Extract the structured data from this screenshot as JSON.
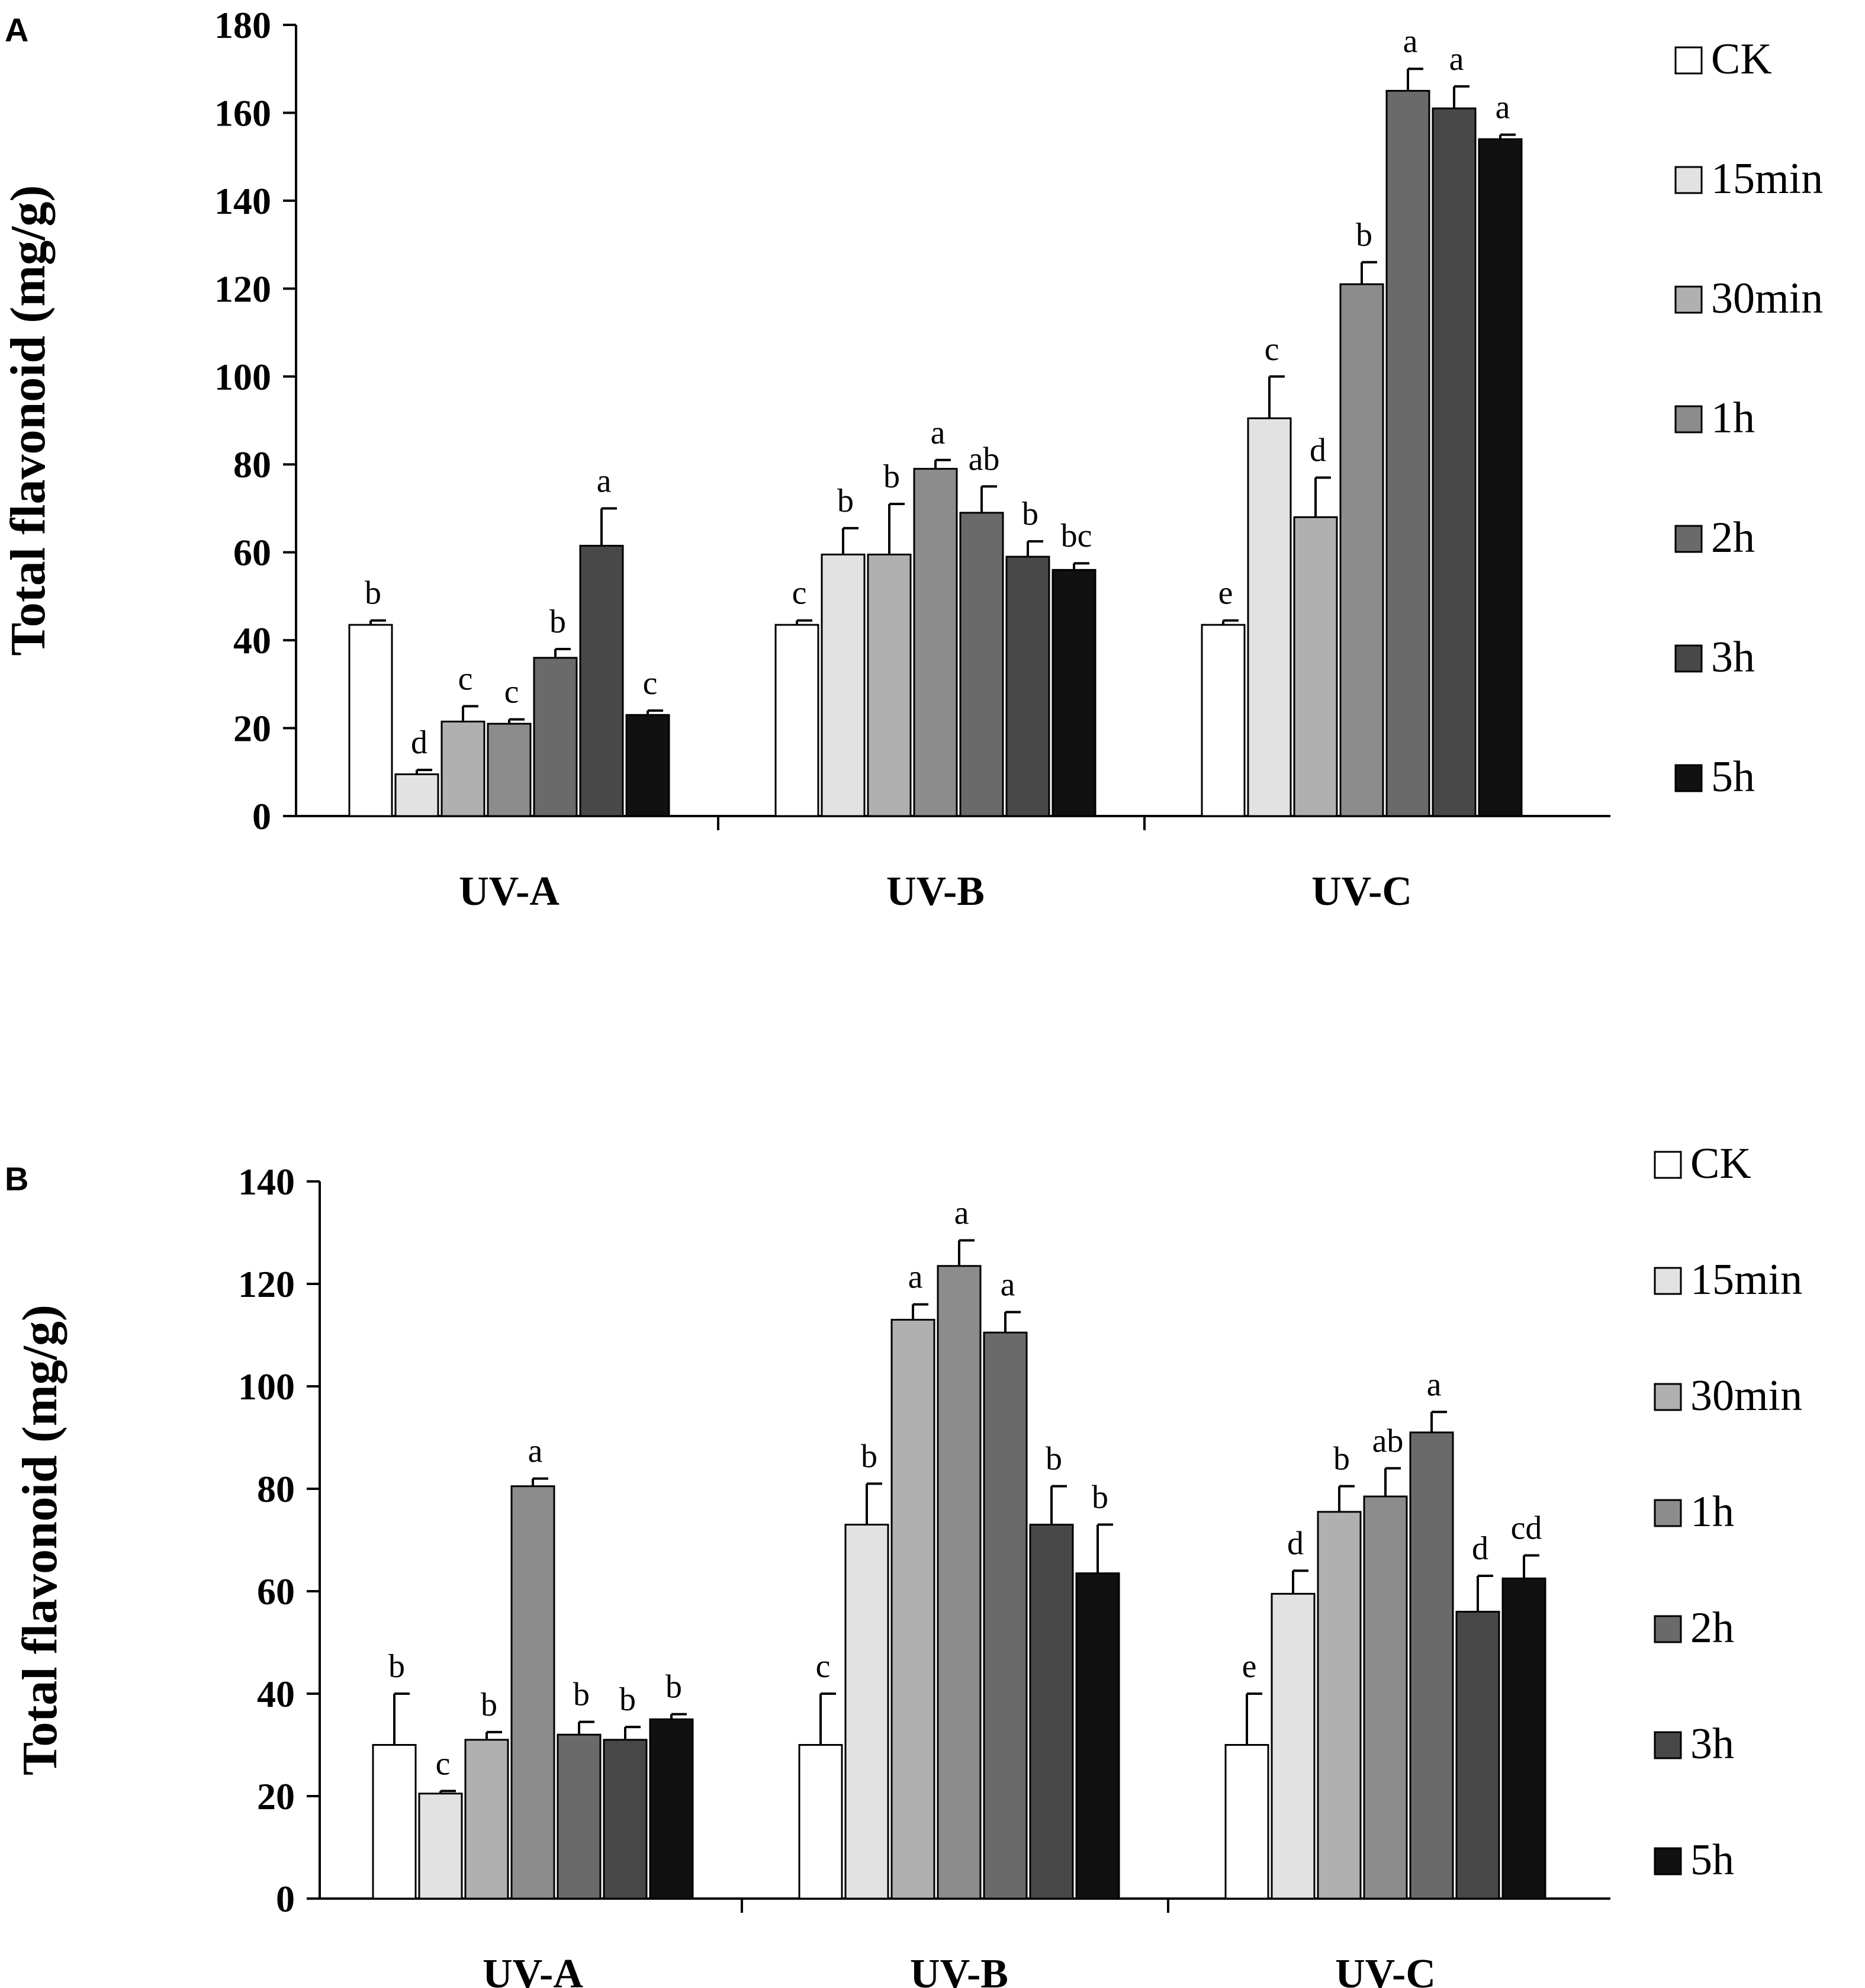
{
  "figure": {
    "legend": [
      "CK",
      "15min",
      "30min",
      "1h",
      "2h",
      "3h",
      "5h"
    ],
    "series_colors": [
      "#ffffff",
      "#e2e2e2",
      "#b0b0b0",
      "#8c8c8c",
      "#6a6a6a",
      "#484848",
      "#111111"
    ]
  },
  "chart_data": [
    {
      "type": "bar",
      "panel": "A",
      "title": "",
      "xlabel": "",
      "ylabel": "Total flavonoid (mg/g)",
      "ylim": [
        0,
        180
      ],
      "yticks": [
        0,
        20,
        40,
        60,
        80,
        100,
        120,
        140,
        160,
        180
      ],
      "grid": false,
      "legend_position": "right",
      "categories": [
        "UV-A",
        "UV-B",
        "UV-C"
      ],
      "series": [
        {
          "name": "CK",
          "values": [
            43.5,
            43.5,
            43.5
          ],
          "errors": [
            1,
            1,
            1
          ],
          "letters": [
            "b",
            "c",
            "e"
          ]
        },
        {
          "name": "15min",
          "values": [
            9.5,
            59.5,
            90.5
          ],
          "errors": [
            1,
            6,
            9.5
          ],
          "letters": [
            "d",
            "b",
            "c"
          ]
        },
        {
          "name": "30min",
          "values": [
            21.5,
            59.5,
            68
          ],
          "errors": [
            3.5,
            11.5,
            9
          ],
          "letters": [
            "c",
            "b",
            "d"
          ]
        },
        {
          "name": "1h",
          "values": [
            21,
            79,
            121
          ],
          "errors": [
            1,
            2,
            5
          ],
          "letters": [
            "c",
            "a",
            "b"
          ]
        },
        {
          "name": "2h",
          "values": [
            36,
            69,
            165
          ],
          "errors": [
            2,
            6,
            5
          ],
          "letters": [
            "b",
            "ab",
            "a"
          ]
        },
        {
          "name": "3h",
          "values": [
            61.5,
            59,
            161
          ],
          "errors": [
            8.5,
            3.5,
            5
          ],
          "letters": [
            "a",
            "b",
            "a"
          ]
        },
        {
          "name": "5h",
          "values": [
            23,
            56,
            154
          ],
          "errors": [
            1,
            1.5,
            1
          ],
          "letters": [
            "c",
            "bc",
            "a"
          ]
        }
      ]
    },
    {
      "type": "bar",
      "panel": "B",
      "title": "",
      "xlabel": "",
      "ylabel": "Total flavonoid (mg/g)",
      "ylim": [
        0,
        140
      ],
      "yticks": [
        0,
        20,
        40,
        60,
        80,
        100,
        120,
        140
      ],
      "grid": false,
      "legend_position": "right",
      "categories": [
        "UV-A",
        "UV-B",
        "UV-C"
      ],
      "series": [
        {
          "name": "CK",
          "values": [
            30,
            30,
            30
          ],
          "errors": [
            10,
            10,
            10
          ],
          "letters": [
            "b",
            "c",
            "e"
          ]
        },
        {
          "name": "15min",
          "values": [
            20.5,
            73,
            59.5
          ],
          "errors": [
            0.5,
            8,
            4.5
          ],
          "letters": [
            "c",
            "b",
            "d"
          ]
        },
        {
          "name": "30min",
          "values": [
            31,
            113,
            75.5
          ],
          "errors": [
            1.5,
            3,
            5
          ],
          "letters": [
            "b",
            "a",
            "b"
          ]
        },
        {
          "name": "1h",
          "values": [
            80.5,
            123.5,
            78.5
          ],
          "errors": [
            1.5,
            5,
            5.5
          ],
          "letters": [
            "a",
            "a",
            "ab"
          ]
        },
        {
          "name": "2h",
          "values": [
            32,
            110.5,
            91
          ],
          "errors": [
            2.5,
            4,
            4
          ],
          "letters": [
            "b",
            "a",
            "a"
          ]
        },
        {
          "name": "3h",
          "values": [
            31,
            73,
            56
          ],
          "errors": [
            2.5,
            7.5,
            7
          ],
          "letters": [
            "b",
            "b",
            "d"
          ]
        },
        {
          "name": "5h",
          "values": [
            35,
            63.5,
            62.5
          ],
          "errors": [
            1,
            9.5,
            4.5
          ],
          "letters": [
            "b",
            "b",
            "cd"
          ]
        }
      ]
    }
  ]
}
